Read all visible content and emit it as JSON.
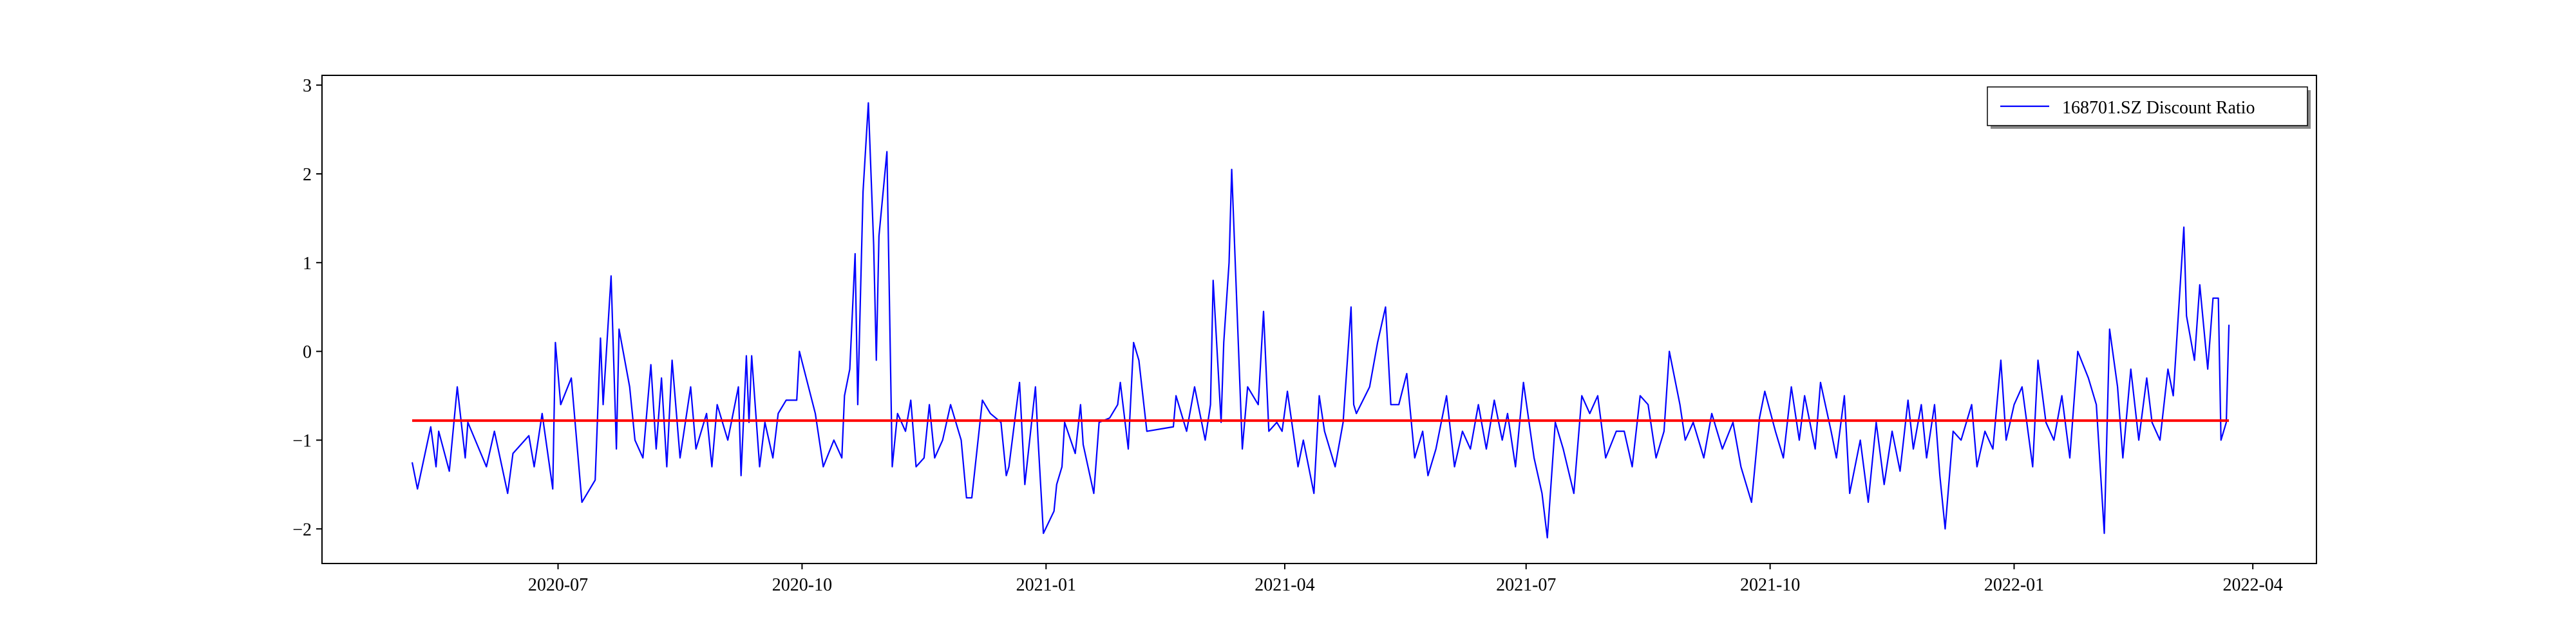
{
  "chart_data": {
    "type": "line",
    "series": [
      {
        "name": "168701.SZ Discount Ratio",
        "color": "#0000ff",
        "x": [
          "2020-05-07",
          "2020-05-09",
          "2020-05-14",
          "2020-05-16",
          "2020-05-17",
          "2020-05-21",
          "2020-05-24",
          "2020-05-27",
          "2020-05-28",
          "2020-06-04",
          "2020-06-07",
          "2020-06-12",
          "2020-06-14",
          "2020-06-20",
          "2020-06-22",
          "2020-06-25",
          "2020-06-29",
          "2020-06-30",
          "2020-07-02",
          "2020-07-06",
          "2020-07-08",
          "2020-07-10",
          "2020-07-15",
          "2020-07-17",
          "2020-07-18",
          "2020-07-21",
          "2020-07-23",
          "2020-07-24",
          "2020-07-28",
          "2020-07-30",
          "2020-08-02",
          "2020-08-05",
          "2020-08-07",
          "2020-08-09",
          "2020-08-11",
          "2020-08-13",
          "2020-08-16",
          "2020-08-20",
          "2020-08-22",
          "2020-08-26",
          "2020-08-28",
          "2020-08-30",
          "2020-09-03",
          "2020-09-07",
          "2020-09-08",
          "2020-09-10",
          "2020-09-11",
          "2020-09-12",
          "2020-09-15",
          "2020-09-17",
          "2020-09-20",
          "2020-09-22",
          "2020-09-25",
          "2020-09-29",
          "2020-09-30",
          "2020-10-06",
          "2020-10-09",
          "2020-10-13",
          "2020-10-16",
          "2020-10-17",
          "2020-10-19",
          "2020-10-21",
          "2020-10-22",
          "2020-10-24",
          "2020-10-26",
          "2020-10-28",
          "2020-10-29",
          "2020-10-30",
          "2020-11-02",
          "2020-11-04",
          "2020-11-06",
          "2020-11-09",
          "2020-11-11",
          "2020-11-13",
          "2020-11-16",
          "2020-11-18",
          "2020-11-20",
          "2020-11-23",
          "2020-11-26",
          "2020-11-30",
          "2020-12-02",
          "2020-12-04",
          "2020-12-08",
          "2020-12-11",
          "2020-12-15",
          "2020-12-17",
          "2020-12-18",
          "2020-12-22",
          "2020-12-24",
          "2020-12-28",
          "2020-12-29",
          "2020-12-31",
          "2021-01-04",
          "2021-01-05",
          "2021-01-07",
          "2021-01-08",
          "2021-01-12",
          "2021-01-14",
          "2021-01-15",
          "2021-01-19",
          "2021-01-21",
          "2021-01-25",
          "2021-01-28",
          "2021-01-29",
          "2021-02-01",
          "2021-02-03",
          "2021-02-05",
          "2021-02-08",
          "2021-02-18",
          "2021-02-19",
          "2021-02-23",
          "2021-02-26",
          "2021-03-02",
          "2021-03-04",
          "2021-03-05",
          "2021-03-08",
          "2021-03-09",
          "2021-03-11",
          "2021-03-12",
          "2021-03-16",
          "2021-03-18",
          "2021-03-22",
          "2021-03-24",
          "2021-03-26",
          "2021-03-29",
          "2021-03-31",
          "2021-04-02",
          "2021-04-06",
          "2021-04-08",
          "2021-04-12",
          "2021-04-14",
          "2021-04-16",
          "2021-04-20",
          "2021-04-23",
          "2021-04-26",
          "2021-04-27",
          "2021-04-28",
          "2021-05-03",
          "2021-05-06",
          "2021-05-09",
          "2021-05-11",
          "2021-05-14",
          "2021-05-17",
          "2021-05-20",
          "2021-05-23",
          "2021-05-25",
          "2021-05-28",
          "2021-06-01",
          "2021-06-04",
          "2021-06-07",
          "2021-06-10",
          "2021-06-13",
          "2021-06-16",
          "2021-06-19",
          "2021-06-22",
          "2021-06-24",
          "2021-06-27",
          "2021-06-30",
          "2021-07-04",
          "2021-07-07",
          "2021-07-09",
          "2021-07-12",
          "2021-07-15",
          "2021-07-19",
          "2021-07-22",
          "2021-07-25",
          "2021-07-28",
          "2021-07-31",
          "2021-08-04",
          "2021-08-07",
          "2021-08-10",
          "2021-08-13",
          "2021-08-16",
          "2021-08-19",
          "2021-08-22",
          "2021-08-24",
          "2021-08-28",
          "2021-08-30",
          "2021-09-02",
          "2021-09-06",
          "2021-09-09",
          "2021-09-13",
          "2021-09-17",
          "2021-09-20",
          "2021-09-24",
          "2021-09-27",
          "2021-09-29",
          "2021-10-03",
          "2021-10-06",
          "2021-10-09",
          "2021-10-12",
          "2021-10-14",
          "2021-10-18",
          "2021-10-20",
          "2021-10-24",
          "2021-10-26",
          "2021-10-29",
          "2021-10-31",
          "2021-11-04",
          "2021-11-07",
          "2021-11-10",
          "2021-11-13",
          "2021-11-16",
          "2021-11-19",
          "2021-11-22",
          "2021-11-24",
          "2021-11-27",
          "2021-11-29",
          "2021-12-02",
          "2021-12-04",
          "2021-12-06",
          "2021-12-09",
          "2021-12-12",
          "2021-12-16",
          "2021-12-18",
          "2021-12-21",
          "2021-12-24",
          "2021-12-27",
          "2021-12-29",
          "2022-01-01",
          "2022-01-04",
          "2022-01-08",
          "2022-01-10",
          "2022-01-13",
          "2022-01-16",
          "2022-01-19",
          "2022-01-22",
          "2022-01-25",
          "2022-01-29",
          "2022-02-01",
          "2022-02-04",
          "2022-02-06",
          "2022-02-09",
          "2022-02-11",
          "2022-02-14",
          "2022-02-17",
          "2022-02-20",
          "2022-02-22",
          "2022-02-25",
          "2022-02-28",
          "2022-03-02",
          "2022-03-06",
          "2022-03-07",
          "2022-03-10",
          "2022-03-12",
          "2022-03-15",
          "2022-03-17",
          "2022-03-19",
          "2022-03-20",
          "2022-03-22",
          "2022-03-23"
        ],
        "values": [
          -1.25,
          -1.55,
          -0.85,
          -1.3,
          -0.9,
          -1.35,
          -0.4,
          -1.2,
          -0.8,
          -1.3,
          -0.9,
          -1.6,
          -1.15,
          -0.95,
          -1.3,
          -0.7,
          -1.55,
          0.1,
          -0.6,
          -0.3,
          -1.0,
          -1.7,
          -1.45,
          0.15,
          -0.6,
          0.85,
          -1.1,
          0.25,
          -0.4,
          -1.0,
          -1.2,
          -0.15,
          -1.1,
          -0.3,
          -1.3,
          -0.1,
          -1.2,
          -0.4,
          -1.1,
          -0.7,
          -1.3,
          -0.6,
          -1.0,
          -0.4,
          -1.4,
          -0.05,
          -0.8,
          -0.05,
          -1.3,
          -0.8,
          -1.2,
          -0.7,
          -0.55,
          -0.55,
          0.0,
          -0.7,
          -1.3,
          -1.0,
          -1.2,
          -0.5,
          -0.2,
          1.1,
          -0.6,
          1.8,
          2.8,
          1.2,
          -0.1,
          1.3,
          2.25,
          -1.3,
          -0.7,
          -0.9,
          -0.55,
          -1.3,
          -1.2,
          -0.6,
          -1.2,
          -1.0,
          -0.6,
          -1.0,
          -1.65,
          -1.65,
          -0.55,
          -0.7,
          -0.8,
          -1.4,
          -1.3,
          -0.35,
          -1.5,
          -0.4,
          -1.0,
          -2.05,
          -1.8,
          -1.5,
          -1.3,
          -0.8,
          -1.15,
          -0.6,
          -1.05,
          -1.6,
          -0.8,
          -0.75,
          -0.6,
          -0.35,
          -1.1,
          0.1,
          -0.1,
          -0.9,
          -0.85,
          -0.5,
          -0.9,
          -0.4,
          -1.0,
          -0.6,
          0.8,
          -0.8,
          0.1,
          1.0,
          2.05,
          -1.1,
          -0.4,
          -0.6,
          0.45,
          -0.9,
          -0.8,
          -0.9,
          -0.45,
          -1.3,
          -1.0,
          -1.6,
          -0.5,
          -0.9,
          -1.3,
          -0.8,
          0.5,
          -0.6,
          -0.7,
          -0.4,
          0.1,
          0.5,
          -0.6,
          -0.6,
          -0.25,
          -1.2,
          -0.9,
          -1.4,
          -1.1,
          -0.5,
          -1.3,
          -0.9,
          -1.1,
          -0.6,
          -1.1,
          -0.55,
          -1.0,
          -0.7,
          -1.3,
          -0.35,
          -1.2,
          -1.6,
          -2.1,
          -0.8,
          -1.1,
          -1.6,
          -0.5,
          -0.7,
          -0.5,
          -1.2,
          -0.9,
          -0.9,
          -1.3,
          -0.5,
          -0.6,
          -1.2,
          -0.9,
          0.0,
          -0.6,
          -1.0,
          -0.8,
          -1.2,
          -0.7,
          -1.1,
          -0.8,
          -1.3,
          -1.7,
          -0.75,
          -0.45,
          -0.9,
          -1.2,
          -0.4,
          -1.0,
          -0.5,
          -1.1,
          -0.35,
          -0.9,
          -1.2,
          -0.5,
          -1.6,
          -1.0,
          -1.7,
          -0.8,
          -1.5,
          -0.9,
          -1.35,
          -0.55,
          -1.1,
          -0.6,
          -1.2,
          -0.6,
          -1.4,
          -2.0,
          -0.9,
          -1.0,
          -0.6,
          -1.3,
          -0.9,
          -1.1,
          -0.1,
          -1.0,
          -0.6,
          -0.4,
          -1.3,
          -0.1,
          -0.8,
          -1.0,
          -0.5,
          -1.2,
          0.0,
          -0.3,
          -0.6,
          -2.05,
          0.25,
          -0.4,
          -1.2,
          -0.2,
          -1.0,
          -0.3,
          -0.8,
          -1.0,
          -0.2,
          -0.5,
          1.4,
          0.4,
          -0.1,
          0.75,
          -0.2,
          0.6,
          0.6,
          -1.0,
          -0.8,
          0.3
        ]
      }
    ],
    "mean_line": {
      "value": -0.78,
      "color": "#ff0000"
    },
    "xlim": [
      "2020-04-03",
      "2022-04-25"
    ],
    "xticks": [
      {
        "value": "2020-07-01",
        "label": "2020-07"
      },
      {
        "value": "2020-10-01",
        "label": "2020-10"
      },
      {
        "value": "2021-01-01",
        "label": "2021-01"
      },
      {
        "value": "2021-04-01",
        "label": "2021-04"
      },
      {
        "value": "2021-07-01",
        "label": "2021-07"
      },
      {
        "value": "2021-10-01",
        "label": "2021-10"
      },
      {
        "value": "2022-01-01",
        "label": "2022-01"
      },
      {
        "value": "2022-04-01",
        "label": "2022-04"
      }
    ],
    "ylim": [
      -2.39,
      3.11
    ],
    "yticks": [
      {
        "value": -2,
        "label": "−2"
      },
      {
        "value": -1,
        "label": "−1"
      },
      0,
      1,
      2,
      3
    ],
    "legend": "upper right"
  }
}
